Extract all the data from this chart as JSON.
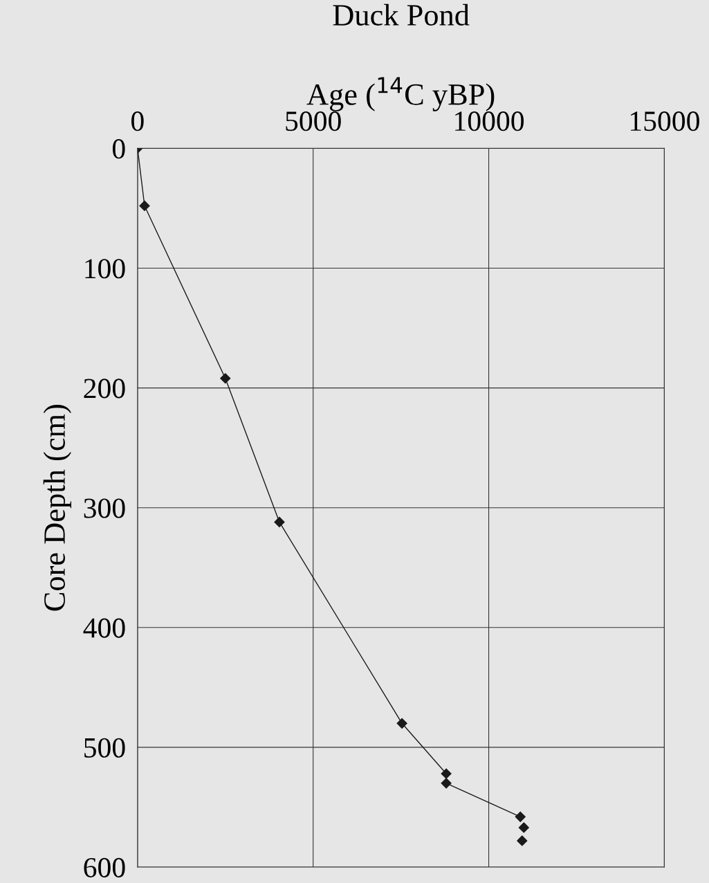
{
  "chart_data": {
    "type": "line",
    "title": "Duck Pond",
    "xlabel": "Age ($^{14}$C yBP)",
    "ylabel": "Core Depth (cm)",
    "series": [
      {
        "color": "#1a1a1a",
        "x": [
          0,
          200,
          2500,
          4040,
          7530,
          8790,
          8790,
          10900
        ],
        "values": [
          0,
          48,
          192,
          312,
          480,
          522,
          530,
          558
        ]
      },
      {
        "type": "scatter",
        "color": "#1a1a1a",
        "x": [
          11000,
          10950
        ],
        "values": [
          567,
          578
        ]
      }
    ],
    "xlim": [
      0,
      15000
    ],
    "xticks": [
      0,
      5000,
      10000,
      15000
    ],
    "ylim": [
      600,
      0
    ],
    "yticks": [
      0,
      100,
      200,
      300,
      400,
      500,
      600
    ],
    "grid": true,
    "marker": "diamond",
    "line_style": "solid",
    "legend": false
  }
}
